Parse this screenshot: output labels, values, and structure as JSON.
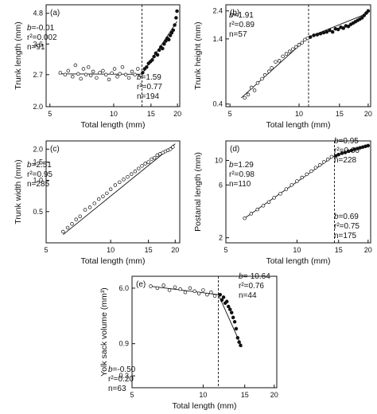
{
  "chart_data": [
    {
      "type": "scatter",
      "panel_label": "(a)",
      "xlabel": "Total length (mm)",
      "ylabel": "Trunk length (mm)",
      "xscale": "log",
      "yscale": "log",
      "xlim": [
        4.8,
        20.5
      ],
      "ylim": [
        2.0,
        5.2
      ],
      "xticks": [
        5,
        10,
        15,
        20
      ],
      "xtick_labels": [
        "5",
        "10",
        "15",
        "20"
      ],
      "yticks": [
        2.0,
        2.7,
        3.6,
        4.8
      ],
      "ytick_labels": [
        "2.0",
        "2.7",
        "3.6",
        "4.8"
      ],
      "breakpoint": 13.6,
      "series": [
        {
          "marker": "open",
          "x": [
            5.6,
            5.9,
            6.1,
            6.4,
            6.6,
            6.8,
            7.0,
            7.2,
            7.4,
            7.6,
            7.8,
            8.0,
            8.3,
            8.6,
            8.9,
            9.2,
            9.5,
            9.8,
            10.1,
            10.4,
            10.7,
            11.0,
            11.4,
            11.8,
            12.2,
            12.6,
            13.0,
            13.4
          ],
          "y": [
            2.75,
            2.7,
            2.8,
            2.65,
            2.95,
            2.72,
            2.6,
            2.85,
            2.7,
            2.9,
            2.68,
            2.78,
            2.62,
            2.75,
            2.8,
            2.7,
            2.58,
            2.74,
            2.85,
            2.65,
            2.72,
            2.9,
            2.7,
            2.62,
            2.78,
            2.7,
            2.85,
            2.68
          ]
        },
        {
          "marker": "filled",
          "x": [
            13.7,
            14.0,
            14.3,
            14.6,
            14.9,
            15.2,
            15.5,
            15.8,
            16.1,
            16.4,
            16.7,
            17.0,
            17.3,
            17.6,
            17.9,
            18.2,
            18.5,
            18.8,
            19.1,
            19.4,
            19.7,
            19.9
          ],
          "y": [
            2.75,
            2.85,
            2.9,
            3.0,
            3.05,
            3.1,
            3.2,
            3.3,
            3.25,
            3.4,
            3.5,
            3.45,
            3.6,
            3.7,
            3.8,
            3.75,
            3.9,
            4.0,
            4.1,
            4.3,
            4.6,
            4.9
          ]
        }
      ],
      "fits": [
        {
          "segment": "before",
          "b": "-0.01",
          "r2": "0.002",
          "n": "91",
          "x0": 5.5,
          "x1": 13.6,
          "y0": 2.72,
          "y1": 2.71
        },
        {
          "segment": "after",
          "b": "1.59",
          "r2": "0.77",
          "n": "194",
          "x0": 13.6,
          "x1": 19.9,
          "y0": 2.71,
          "y1": 4.45
        }
      ]
    },
    {
      "type": "scatter",
      "panel_label": "(b)",
      "xlabel": "Total length (mm)",
      "ylabel": "Trunk height (mm)",
      "xscale": "log",
      "yscale": "log",
      "xlim": [
        4.8,
        20.5
      ],
      "ylim": [
        0.38,
        2.7
      ],
      "xticks": [
        5,
        10,
        15,
        20
      ],
      "xtick_labels": [
        "5",
        "10",
        "15",
        "20"
      ],
      "yticks": [
        0.4,
        1.4,
        2.4
      ],
      "ytick_labels": [
        "0.4",
        "1.4",
        "2.4"
      ],
      "breakpoint": 11.0,
      "series": [
        {
          "marker": "open",
          "x": [
            5.8,
            6.0,
            6.2,
            6.4,
            6.6,
            6.9,
            7.1,
            7.4,
            7.6,
            7.9,
            8.2,
            8.5,
            8.8,
            9.1,
            9.4,
            9.7,
            10.0,
            10.3,
            10.6,
            10.9
          ],
          "y": [
            0.45,
            0.48,
            0.55,
            0.52,
            0.6,
            0.65,
            0.7,
            0.75,
            0.8,
            0.9,
            0.92,
            1.0,
            1.05,
            1.1,
            1.15,
            1.2,
            1.25,
            1.3,
            1.38,
            1.42
          ]
        },
        {
          "marker": "filled",
          "x": [
            11.2,
            11.6,
            12.0,
            12.4,
            12.8,
            13.2,
            13.6,
            14.0,
            14.4,
            14.8,
            15.2,
            15.6,
            16.0,
            16.4,
            16.8,
            17.2,
            17.6,
            18.0,
            18.4,
            18.8,
            19.2,
            19.6,
            20.0
          ],
          "y": [
            1.45,
            1.5,
            1.52,
            1.55,
            1.58,
            1.6,
            1.65,
            1.6,
            1.7,
            1.68,
            1.75,
            1.72,
            1.8,
            1.78,
            1.85,
            1.9,
            1.95,
            2.0,
            2.05,
            2.1,
            2.2,
            2.3,
            2.4
          ]
        }
      ],
      "fits": [
        {
          "segment": "before",
          "b": "1.91",
          "r2": "0.89",
          "n": "57",
          "x0": 5.6,
          "x1": 11.0,
          "y0": 0.45,
          "y1": 1.45
        },
        {
          "segment": "after",
          "b": "0.95",
          "r2": "0.60",
          "n": "228",
          "x0": 11.0,
          "x1": 20.0,
          "y0": 1.45,
          "y1": 2.3
        }
      ]
    },
    {
      "type": "scatter",
      "panel_label": "(c)",
      "xlabel": "Total length (mm)",
      "ylabel": "Trunk width (mm)",
      "xscale": "log",
      "yscale": "log",
      "xlim": [
        5,
        21
      ],
      "ylim": [
        0.25,
        2.4
      ],
      "xticks": [
        5,
        10,
        15,
        20
      ],
      "xtick_labels": [
        "5",
        "10",
        "15",
        "20"
      ],
      "yticks": [
        0.5,
        1.0,
        1.5,
        2.0
      ],
      "ytick_labels": [
        "0.5",
        "1.0",
        "1.5",
        "2.0"
      ],
      "breakpoint": null,
      "series": [
        {
          "marker": "open",
          "x": [
            6.0,
            6.3,
            6.6,
            6.9,
            7.2,
            7.6,
            8.0,
            8.4,
            8.8,
            9.2,
            9.6,
            10.0,
            10.5,
            11.0,
            11.5,
            12.0,
            12.5,
            13.0,
            13.5,
            14.0,
            14.5,
            15.0,
            15.5,
            16.0,
            16.5,
            17.0,
            17.5,
            18.0,
            18.5,
            19.0,
            19.5
          ],
          "y": [
            0.32,
            0.35,
            0.38,
            0.42,
            0.45,
            0.52,
            0.55,
            0.6,
            0.66,
            0.7,
            0.75,
            0.82,
            0.9,
            0.96,
            1.02,
            1.08,
            1.15,
            1.22,
            1.3,
            1.38,
            1.45,
            1.5,
            1.6,
            1.65,
            1.75,
            1.8,
            1.85,
            1.9,
            1.95,
            2.0,
            2.1
          ]
        }
      ],
      "fits": [
        {
          "segment": "all",
          "b": "2.51",
          "r2": "0.95",
          "n": "285",
          "x0": 6.0,
          "x1": 20.0,
          "y0": 0.3,
          "y1": 2.25
        }
      ]
    },
    {
      "type": "scatter",
      "panel_label": "(d)",
      "xlabel": "Total length (mm)",
      "ylabel": "Postanal length (mm)",
      "xscale": "log",
      "yscale": "log",
      "xlim": [
        5,
        20.5
      ],
      "ylim": [
        1.8,
        15
      ],
      "xticks": [
        5,
        10,
        15,
        20
      ],
      "xtick_labels": [
        "5",
        "10",
        "15",
        "20"
      ],
      "yticks": [
        2,
        6,
        10
      ],
      "ytick_labels": [
        "2",
        "6",
        "10"
      ],
      "breakpoint": 14.4,
      "series": [
        {
          "marker": "open",
          "x": [
            6.0,
            6.4,
            6.8,
            7.2,
            7.6,
            8.0,
            8.5,
            9.0,
            9.5,
            10.0,
            10.5,
            11.0,
            11.5,
            12.0,
            12.5,
            13.0,
            13.5,
            14.0
          ],
          "y": [
            3.0,
            3.3,
            3.6,
            3.9,
            4.2,
            4.6,
            5.0,
            5.5,
            6.0,
            6.5,
            7.0,
            7.5,
            8.0,
            8.6,
            9.1,
            9.7,
            10.2,
            10.8
          ]
        },
        {
          "marker": "filled",
          "x": [
            14.6,
            15.0,
            15.5,
            16.0,
            16.5,
            17.0,
            17.5,
            18.0,
            18.5,
            19.0,
            19.5,
            20.0
          ],
          "y": [
            11.0,
            11.3,
            11.6,
            11.8,
            12.1,
            12.3,
            12.6,
            12.8,
            13.0,
            13.2,
            13.4,
            13.6
          ]
        }
      ],
      "fits": [
        {
          "segment": "before",
          "b": "1.29",
          "r2": "0.98",
          "n": "110",
          "x0": 6.0,
          "x1": 14.4,
          "y0": 3.0,
          "y1": 11.0
        },
        {
          "segment": "after",
          "b": "0.69",
          "r2": "0.75",
          "n": "175",
          "x0": 14.4,
          "x1": 20.0,
          "y0": 11.0,
          "y1": 13.6
        }
      ]
    },
    {
      "type": "scatter",
      "panel_label": "(e)",
      "xlabel": "Total length (mm)",
      "ylabel": "Yolk sack volume (mm³)",
      "xscale": "log",
      "yscale": "log",
      "xlim": [
        5,
        20.5
      ],
      "ylim": [
        0.2,
        9
      ],
      "xticks": [
        5,
        10,
        15,
        20
      ],
      "xtick_labels": [
        "5",
        "10",
        "15",
        "20"
      ],
      "yticks": [
        0.3,
        0.9,
        6.0
      ],
      "ytick_labels": [
        "0.3",
        "0.9",
        "6.0"
      ],
      "breakpoint": 11.6,
      "series": [
        {
          "marker": "open",
          "x": [
            6.0,
            6.4,
            6.8,
            7.2,
            7.6,
            8.0,
            8.4,
            8.8,
            9.2,
            9.6,
            10.0,
            10.4,
            10.8,
            11.2
          ],
          "y": [
            6.4,
            6.0,
            6.6,
            5.6,
            6.2,
            5.8,
            5.2,
            6.0,
            5.4,
            5.0,
            5.6,
            4.8,
            5.2,
            4.6
          ]
        },
        {
          "marker": "filled",
          "x": [
            11.8,
            12.0,
            12.2,
            12.4,
            12.6,
            12.8,
            13.0,
            13.2,
            13.4,
            13.6,
            13.8,
            14.0,
            14.2,
            14.4
          ],
          "y": [
            4.8,
            4.0,
            4.4,
            3.6,
            3.8,
            3.2,
            2.9,
            2.6,
            2.2,
            1.9,
            1.5,
            1.1,
            0.95,
            0.85
          ]
        }
      ],
      "fits": [
        {
          "segment": "before",
          "b": "-0.50",
          "r2": "0.20",
          "n": "63",
          "x0": 6.0,
          "x1": 11.6,
          "y0": 6.4,
          "y1": 4.8
        },
        {
          "segment": "after",
          "b": "-10.64",
          "r2": "0.76",
          "n": "44",
          "x0": 11.6,
          "x1": 14.6,
          "y0": 4.8,
          "y1": 0.8
        }
      ]
    }
  ]
}
